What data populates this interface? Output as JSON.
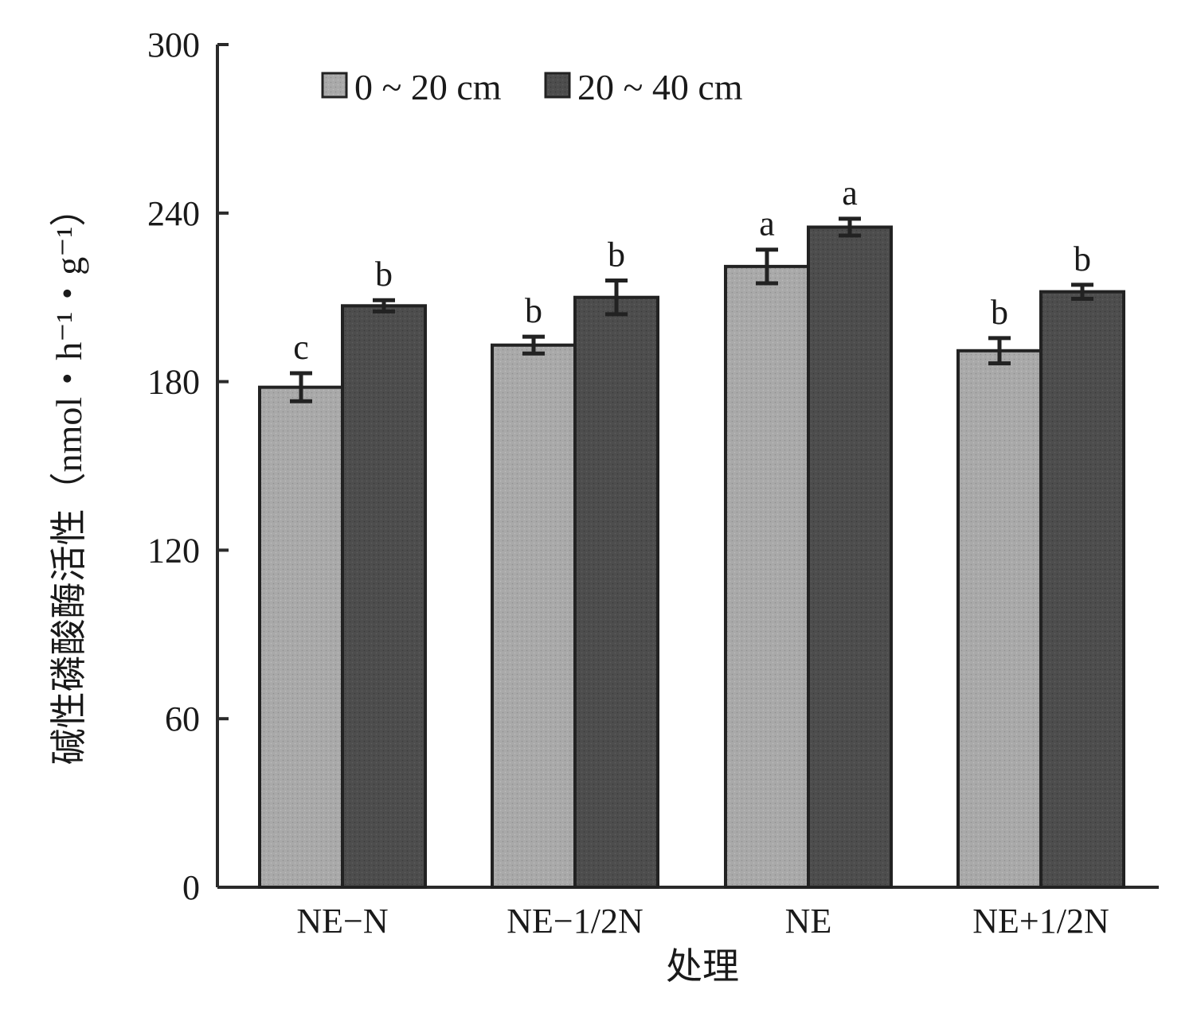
{
  "chart_data": {
    "type": "bar",
    "title": "",
    "xlabel": "处理",
    "ylabel": "碱性磷酸酶活性（nmol・h⁻¹・g⁻¹）",
    "ylim": [
      0,
      300
    ],
    "yticks": [
      0,
      60,
      120,
      180,
      240,
      300
    ],
    "categories": [
      "NE−N",
      "NE−1/2N",
      "NE",
      "NE+1/2N"
    ],
    "legend_position": "top-left",
    "grid": false,
    "series": [
      {
        "name": "0 ~ 20 cm",
        "color": "#a6a6a6",
        "values": [
          178,
          193,
          221,
          191
        ],
        "errors": [
          5,
          3,
          6,
          4.5
        ],
        "significance": [
          "c",
          "b",
          "a",
          "b"
        ]
      },
      {
        "name": "20 ~ 40 cm",
        "color": "#4a4a4a",
        "values": [
          207,
          210,
          235,
          212
        ],
        "errors": [
          2,
          6,
          3,
          2.5
        ],
        "significance": [
          "b",
          "b",
          "a",
          "b"
        ]
      }
    ]
  }
}
